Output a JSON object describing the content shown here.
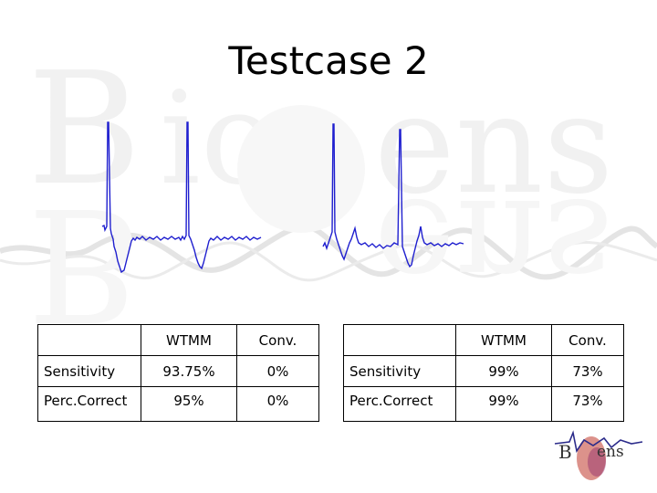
{
  "title": "Testcase 2",
  "watermark": {
    "text": "BioSens"
  },
  "logo": {
    "text": "BioSens"
  },
  "tables": [
    {
      "headers": [
        "",
        "WTMM",
        "Conv."
      ],
      "rows": [
        {
          "label": "Sensitivity",
          "wtmm": "93.75%",
          "conv": "0%"
        },
        {
          "label": "Perc.Correct",
          "wtmm": "95%",
          "conv": "0%"
        }
      ]
    },
    {
      "headers": [
        "",
        "WTMM",
        "Conv."
      ],
      "rows": [
        {
          "label": "Sensitivity",
          "wtmm": "99%",
          "conv": "73%"
        },
        {
          "label": "Perc.Correct",
          "wtmm": "99%",
          "conv": "73%"
        }
      ]
    }
  ],
  "colors": {
    "signal": "#1f1fcf",
    "watermark": "#e8e8e8"
  },
  "icons": {
    "logo": "biosens-logo"
  }
}
